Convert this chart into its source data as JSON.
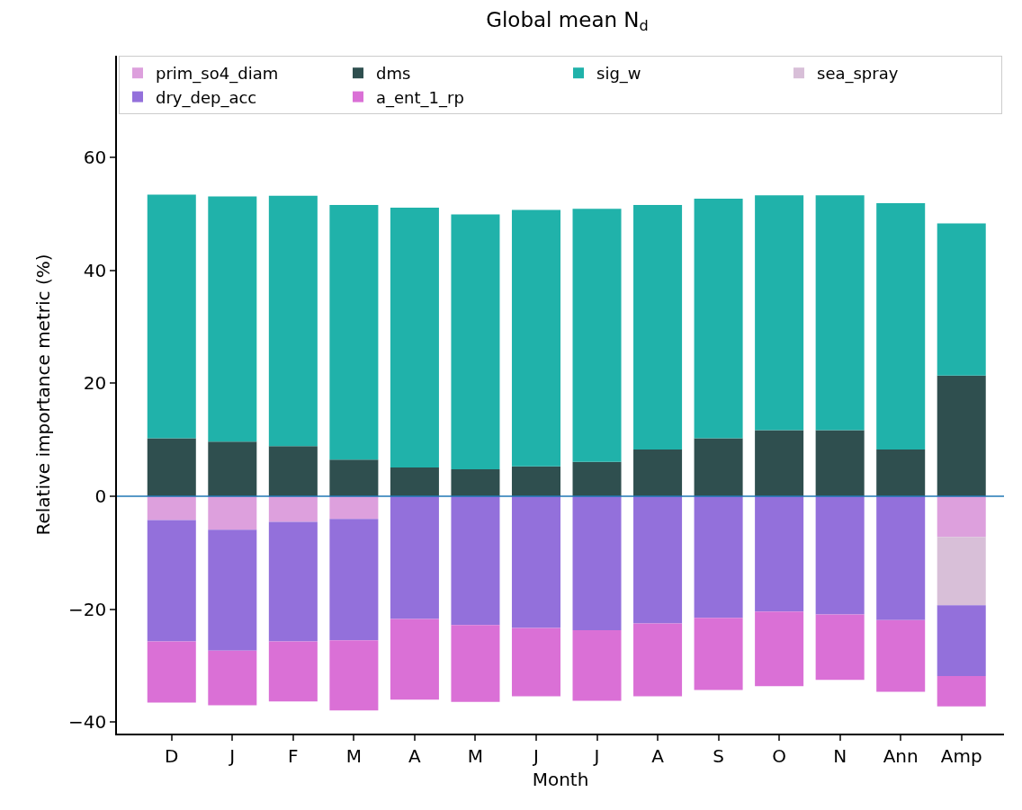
{
  "chart_data": {
    "type": "bar",
    "stacked": true,
    "title": "Global mean N$_{d}$",
    "xlabel": "Month",
    "ylabel": "Relative importance metric (%)",
    "categories": [
      "D",
      "J",
      "F",
      "M",
      "A",
      "M",
      "J",
      "J",
      "A",
      "S",
      "O",
      "N",
      "Ann",
      "Amp"
    ],
    "series": [
      {
        "name": "prim_so4_diam",
        "color": "#dda0dd",
        "values": [
          -4.2,
          -5.9,
          -4.5,
          -4.0,
          null,
          null,
          null,
          null,
          null,
          null,
          null,
          null,
          null,
          -7.2
        ]
      },
      {
        "name": "dms",
        "color": "#2f4f4f",
        "values": [
          10.3,
          9.7,
          8.9,
          6.5,
          5.1,
          4.8,
          5.3,
          6.1,
          8.3,
          10.3,
          11.7,
          11.7,
          8.3,
          21.4
        ]
      },
      {
        "name": "sig_w",
        "color": "#20b2aa",
        "values": [
          43.1,
          43.4,
          44.3,
          45.1,
          46.0,
          45.1,
          45.4,
          44.8,
          43.3,
          42.4,
          41.6,
          41.6,
          43.6,
          26.9
        ]
      },
      {
        "name": "sea_spray",
        "color": "#d8bfd8",
        "values": [
          null,
          null,
          null,
          null,
          null,
          null,
          null,
          null,
          null,
          null,
          null,
          null,
          null,
          -12.1
        ]
      },
      {
        "name": "dry_dep_acc",
        "color": "#9370db",
        "values": [
          -21.5,
          -21.4,
          -21.2,
          -21.5,
          -21.7,
          -22.8,
          -23.3,
          -23.7,
          -22.5,
          -21.5,
          -20.4,
          -20.9,
          -21.9,
          -12.5
        ]
      },
      {
        "name": "a_ent_1_rp",
        "color": "#da70d6",
        "values": [
          -10.8,
          -9.7,
          -10.6,
          -12.4,
          -14.3,
          -13.6,
          -12.1,
          -12.5,
          -12.9,
          -12.8,
          -13.2,
          -11.6,
          -12.7,
          -5.4
        ]
      }
    ],
    "ylim": [
      -42,
      78
    ],
    "yticks": [
      -40,
      -20,
      0,
      20,
      40,
      60
    ],
    "ref_lines": [
      {
        "axis": "y",
        "value": 0,
        "color": "#1f77b4"
      }
    ],
    "legend": "top"
  }
}
